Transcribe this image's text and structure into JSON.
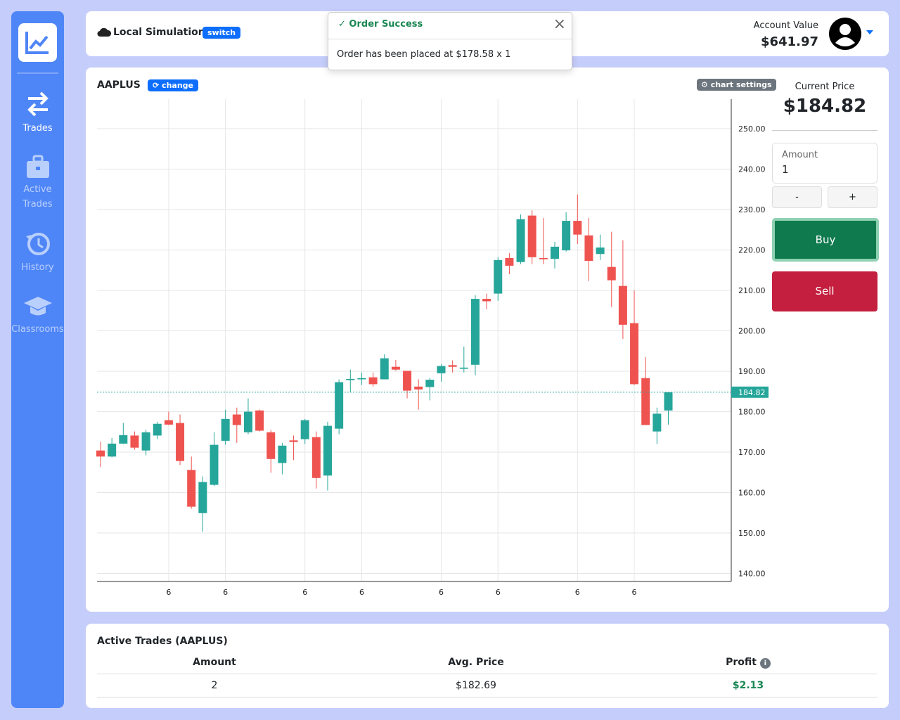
{
  "sidebar": {
    "items": [
      {
        "label": "Trades"
      },
      {
        "label": "Active Trades"
      },
      {
        "label": "History"
      },
      {
        "label": "Classrooms"
      }
    ]
  },
  "header": {
    "mode": "Local Simulation",
    "switch": "switch",
    "account_label": "Account Value",
    "account_value": "$641.97"
  },
  "toast": {
    "title": "Order Success",
    "message": "Order has been placed at $178.58 x 1"
  },
  "trade_panel": {
    "current_price_label": "Current Price",
    "current_price": "$184.82",
    "amount_label": "Amount",
    "amount": "1",
    "minus": "-",
    "plus": "+",
    "buy": "Buy",
    "sell": "Sell"
  },
  "chart_data": {
    "type": "candlestick",
    "title": "AAPLUS",
    "change": "change",
    "settings": "chart settings",
    "categories": [
      null,
      null,
      null,
      null,
      null,
      null,
      "6",
      null,
      null,
      null,
      null,
      "6",
      null,
      null,
      null,
      null,
      null,
      null,
      "6",
      null,
      null,
      null,
      null,
      "6",
      null,
      null,
      null,
      null,
      null,
      null,
      "6",
      null,
      null,
      null,
      null,
      "6",
      null,
      null,
      null,
      null,
      null,
      null,
      "6",
      null,
      null,
      null,
      null,
      "6",
      null,
      null,
      null
    ],
    "open": [
      170.4,
      168.9,
      172.1,
      174.1,
      170.4,
      174.1,
      177.9,
      177.2,
      165.6,
      154.9,
      161.9,
      172.8,
      179.3,
      174.9,
      180.3,
      174.9,
      167.3,
      172.9,
      173.2,
      173.7,
      164.2,
      175.8,
      187.8,
      188.0,
      188.5,
      188.0,
      191.1,
      190.1,
      186.2,
      186.1,
      189.5,
      191.5,
      190.6,
      191.6,
      207.9,
      209.2,
      218.0,
      217.0,
      228.5,
      218.0,
      217.8,
      219.9,
      227.2,
      223.6,
      219.0,
      215.8,
      211.1,
      201.9,
      188.3,
      175.1,
      180.3
    ],
    "high": [
      172.6,
      173.5,
      177.2,
      175.1,
      175.5,
      177.5,
      180.0,
      179.3,
      168.9,
      164.0,
      174.9,
      180.5,
      181.0,
      183.3,
      180.5,
      175.5,
      172.3,
      174.1,
      178.2,
      175.1,
      177.5,
      188.0,
      190.4,
      189.7,
      189.7,
      194.2,
      192.8,
      190.1,
      188.0,
      188.3,
      191.8,
      192.7,
      196.1,
      208.8,
      209.2,
      218.2,
      219.2,
      228.8,
      229.8,
      227.9,
      222.0,
      229.3,
      233.7,
      227.9,
      223.8,
      224.5,
      222.4,
      210.0,
      193.5,
      181.0,
      184.8
    ],
    "low": [
      166.3,
      168.7,
      172.0,
      170.6,
      169.2,
      173.2,
      176.7,
      166.8,
      156.0,
      150.3,
      161.6,
      171.8,
      172.3,
      174.4,
      175.1,
      164.9,
      164.5,
      168.0,
      172.0,
      161.0,
      160.5,
      174.4,
      184.8,
      186.6,
      186.2,
      188.0,
      190.1,
      183.3,
      180.5,
      182.8,
      187.4,
      189.7,
      189.7,
      189.0,
      205.3,
      207.4,
      214.0,
      216.5,
      216.5,
      216.5,
      215.4,
      219.6,
      221.5,
      212.3,
      217.5,
      205.9,
      198.0,
      186.6,
      176.7,
      172.0,
      176.8
    ],
    "close": [
      168.9,
      172.1,
      174.2,
      171.1,
      174.9,
      177.0,
      176.8,
      167.8,
      156.5,
      162.6,
      171.8,
      178.2,
      176.7,
      180.0,
      175.3,
      168.3,
      171.6,
      172.5,
      177.9,
      163.6,
      176.5,
      187.3,
      188.1,
      188.3,
      186.8,
      193.2,
      190.4,
      185.2,
      185.5,
      187.9,
      191.3,
      191.1,
      190.9,
      207.9,
      207.3,
      217.5,
      216.1,
      227.6,
      218.2,
      217.7,
      220.8,
      227.2,
      223.8,
      217.3,
      220.6,
      212.5,
      201.5,
      186.8,
      176.7,
      179.5,
      184.8
    ],
    "up_color": "#26a69a",
    "down_color": "#ef5350",
    "ylim": [
      138,
      257.3
    ],
    "yticks": [
      {
        "value": 140,
        "label": "140.00"
      },
      {
        "value": 150,
        "label": "150.00"
      },
      {
        "value": 160,
        "label": "160.00"
      },
      {
        "value": 170,
        "label": "170.00"
      },
      {
        "value": 180,
        "label": "180.00"
      },
      {
        "value": 190,
        "label": "190.00"
      },
      {
        "value": 200,
        "label": "200.00"
      },
      {
        "value": 210,
        "label": "210.00"
      },
      {
        "value": 220,
        "label": "220.00"
      },
      {
        "value": 230,
        "label": "230.00"
      },
      {
        "value": 240,
        "label": "240.00"
      },
      {
        "value": 250,
        "label": "250.00"
      }
    ],
    "grid": true,
    "price_line": {
      "value": 184.82,
      "label": "184.82"
    }
  },
  "table": {
    "title": "Active Trades (AAPLUS)",
    "headers": [
      "Amount",
      "Avg. Price",
      "Profit"
    ],
    "rows": [
      [
        "2",
        "$182.69",
        "$2.13"
      ]
    ]
  }
}
